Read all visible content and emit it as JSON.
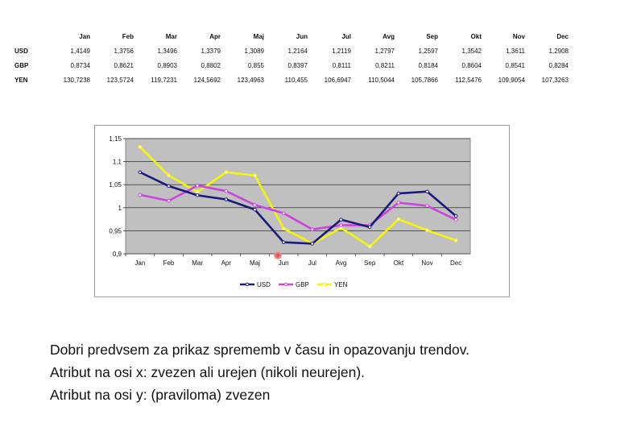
{
  "table": {
    "months": [
      "Jan",
      "Feb",
      "Mar",
      "Apr",
      "Maj",
      "Jun",
      "Jul",
      "Avg",
      "Sep",
      "Okt",
      "Nov",
      "Dec"
    ],
    "rows": [
      {
        "label": "USD",
        "values": [
          "1,4149",
          "1,3756",
          "1,3496",
          "1,3379",
          "1,3089",
          "1,2164",
          "1,2119",
          "1,2797",
          "1,2597",
          "1,3542",
          "1,3611",
          "1,2908"
        ]
      },
      {
        "label": "GBP",
        "values": [
          "0,8734",
          "0,8621",
          "0,8903",
          "0,8802",
          "0,855",
          "0,8397",
          "0,8111",
          "0,8211",
          "0,8184",
          "0,8604",
          "0,8541",
          "0,8284"
        ]
      },
      {
        "label": "YEN",
        "values": [
          "130,7238",
          "123,5724",
          "119,7231",
          "124,5692",
          "123,4963",
          "110,455",
          "106,6947",
          "110,5044",
          "105,7866",
          "112,5476",
          "109,9054",
          "107,3263"
        ]
      }
    ]
  },
  "chart_data": {
    "type": "line",
    "categories": [
      "Jan",
      "Feb",
      "Mar",
      "Apr",
      "Maj",
      "Jun",
      "Jul",
      "Avg",
      "Sep",
      "Okt",
      "Nov",
      "Dec"
    ],
    "ylim": [
      0.9,
      1.15
    ],
    "yticks": [
      "0,9",
      "0,95",
      "1",
      "1,05",
      "1,1",
      "1,15"
    ],
    "ytick_values": [
      0.9,
      0.95,
      1.0,
      1.05,
      1.1,
      1.15
    ],
    "grid": true,
    "legend_position": "bottom",
    "series": [
      {
        "name": "USD",
        "color": "#1a1a7a",
        "values": [
          1.077,
          1.047,
          1.027,
          1.018,
          0.996,
          0.925,
          0.922,
          0.974,
          0.958,
          1.031,
          1.035,
          0.982
        ]
      },
      {
        "name": "GBP",
        "color": "#cc44dd",
        "values": [
          1.028,
          1.015,
          1.048,
          1.036,
          1.006,
          0.988,
          0.953,
          0.962,
          0.962,
          1.011,
          1.004,
          0.974
        ]
      },
      {
        "name": "YEN",
        "color": "#f5f50a",
        "values": [
          1.132,
          1.07,
          1.034,
          1.077,
          1.07,
          0.955,
          0.922,
          0.956,
          0.916,
          0.975,
          0.951,
          0.929
        ]
      }
    ]
  },
  "notes": {
    "line1": "Dobri predvsem za prikaz sprememb v času in opazovanju trendov.",
    "line2": "Atribut na osi x: zvezen ali urejen (nikoli neurejen).",
    "line3": "Atribut na osi y: (praviloma) zvezen"
  }
}
